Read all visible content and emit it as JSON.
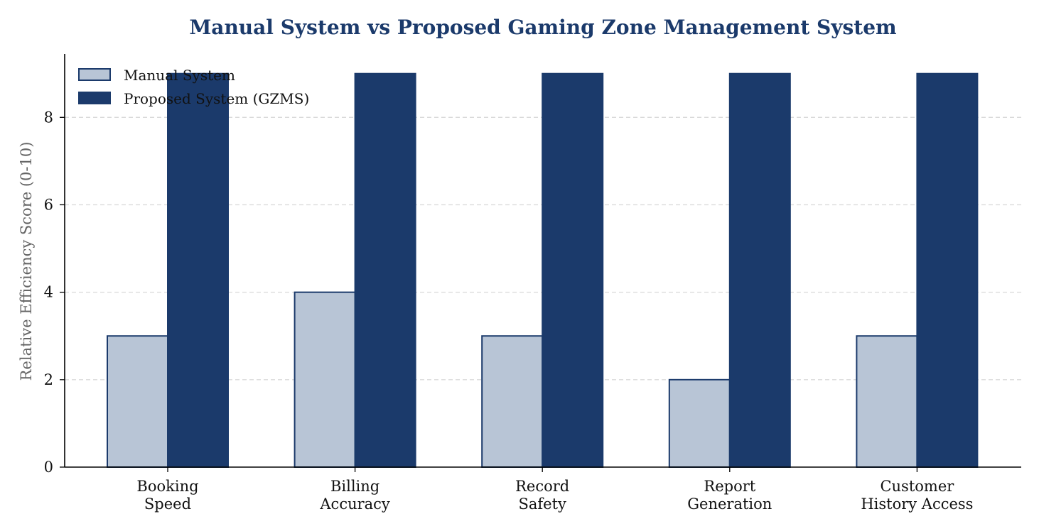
{
  "chart_data": {
    "type": "bar",
    "title": "Manual System vs Proposed Gaming Zone Management System",
    "xlabel": "",
    "ylabel": "Relative Efficiency Score (0-10)",
    "categories": [
      [
        "Booking",
        "Speed"
      ],
      [
        "Billing",
        "Accuracy"
      ],
      [
        "Record",
        "Safety"
      ],
      [
        "Report",
        "Generation"
      ],
      [
        "Customer",
        "History Access"
      ]
    ],
    "series": [
      {
        "name": "Manual System",
        "values": [
          3,
          4,
          3,
          2,
          3
        ],
        "color": "#b8c5d6",
        "edge": "#1b3a6b"
      },
      {
        "name": "Proposed System (GZMS)",
        "values": [
          9,
          9,
          9,
          9,
          9
        ],
        "color": "#1b3a6b",
        "edge": "#1b3a6b"
      }
    ],
    "ylim": [
      0,
      9.45
    ],
    "yticks": [
      "0",
      "2",
      "4",
      "6",
      "8"
    ],
    "grid": "y-dashed",
    "legend": "top-left"
  }
}
